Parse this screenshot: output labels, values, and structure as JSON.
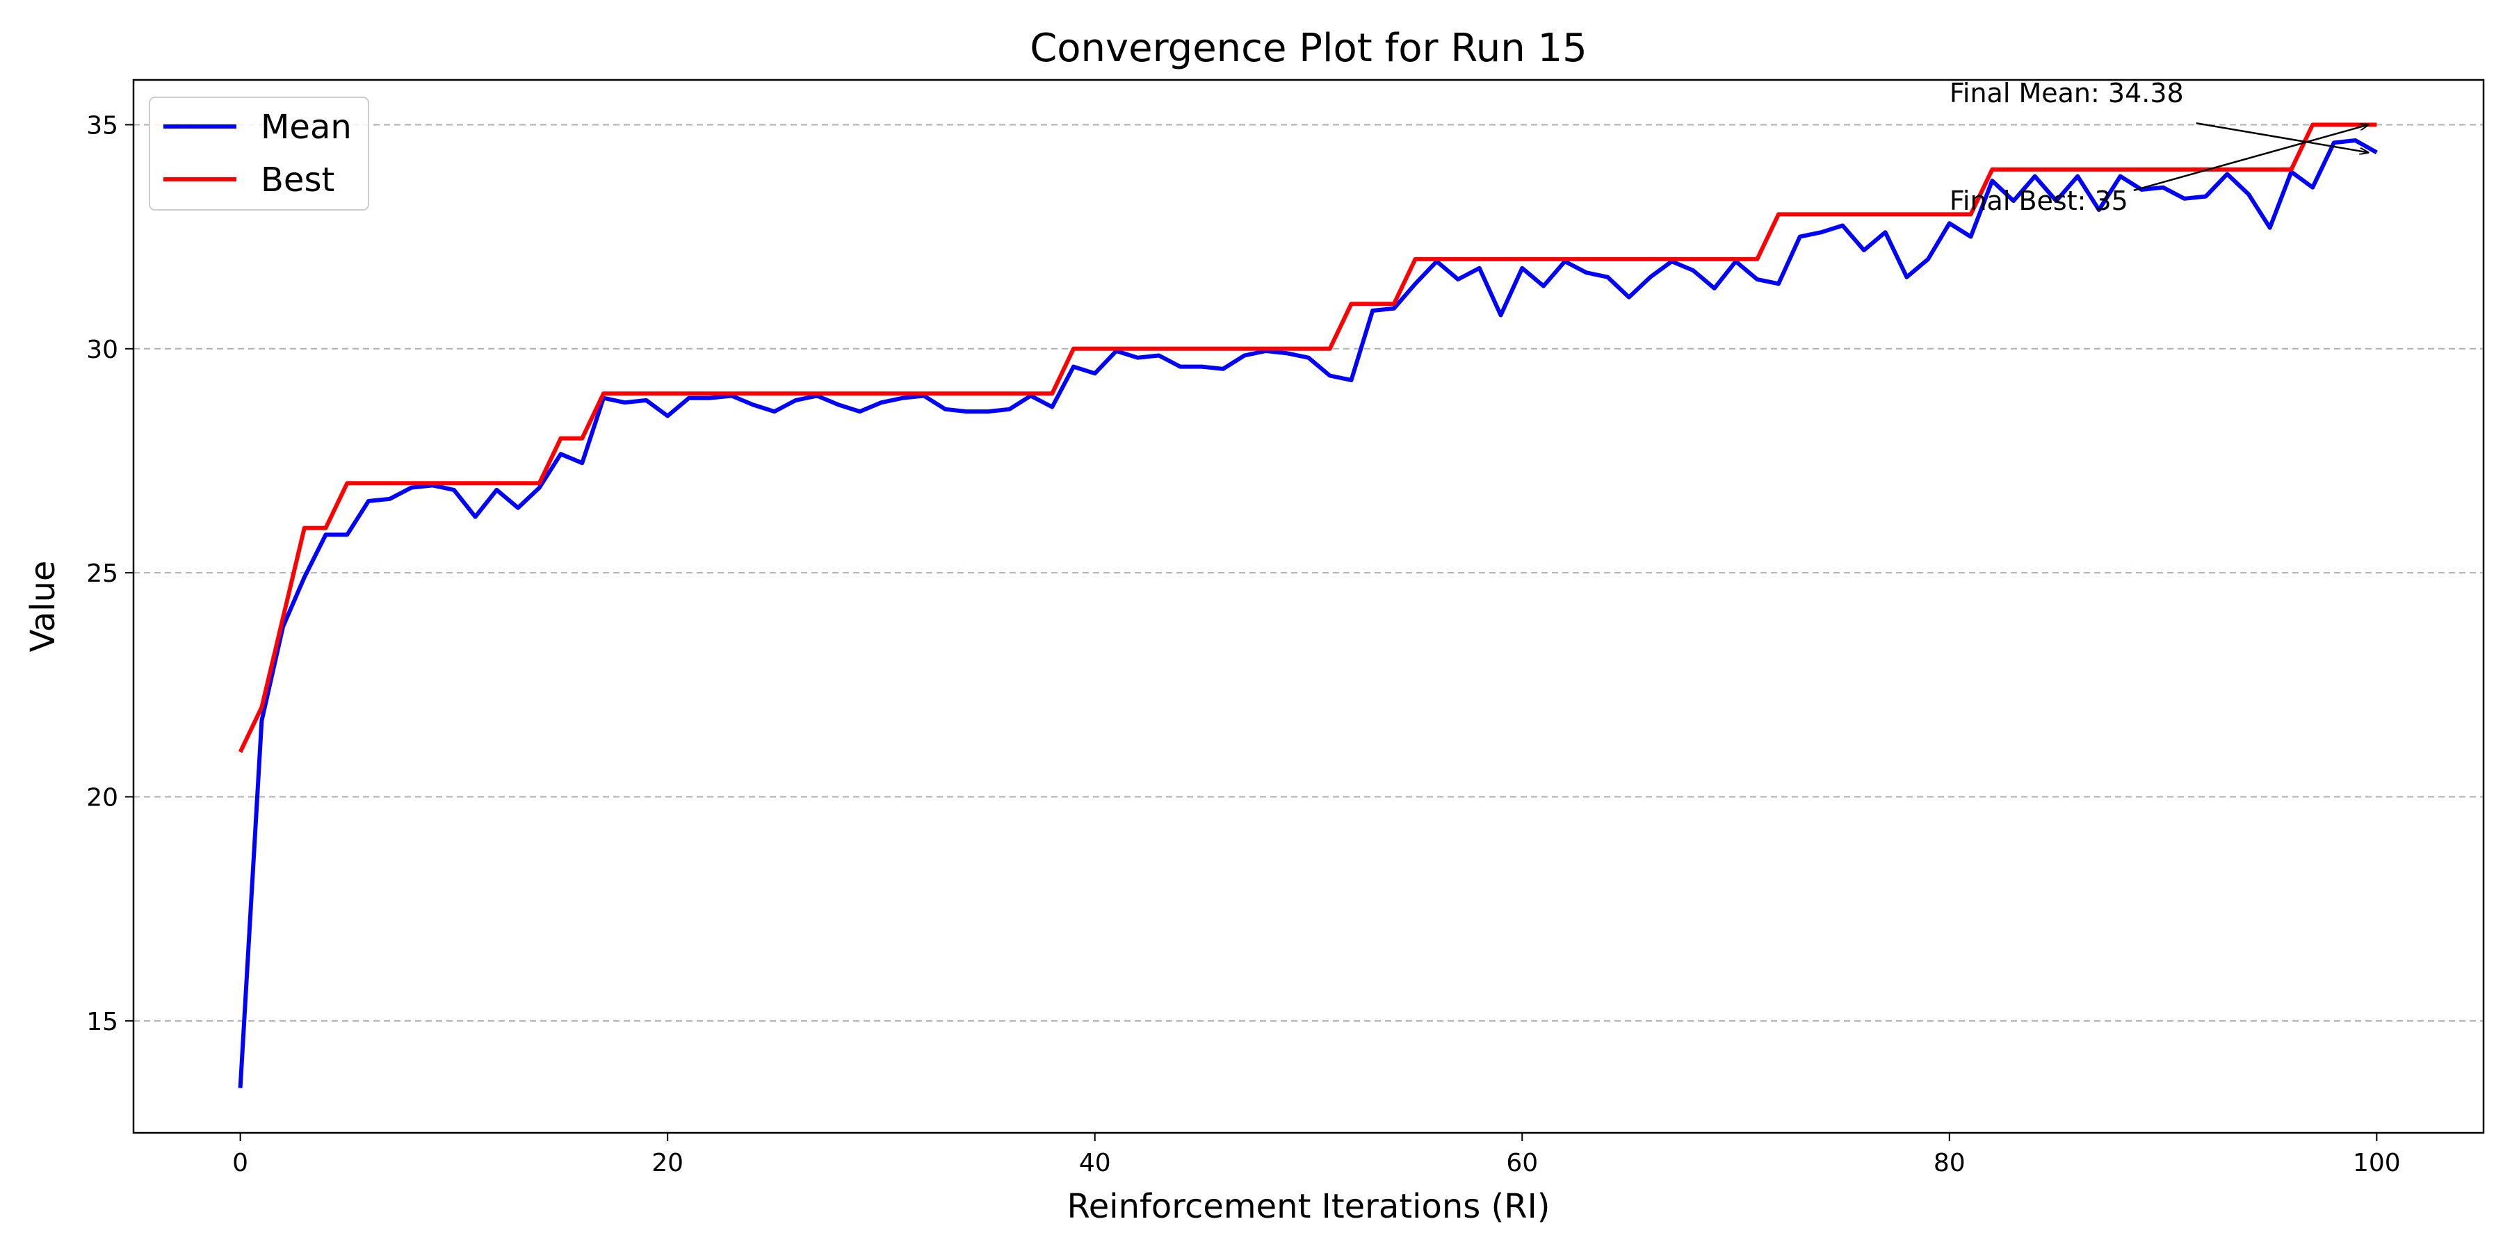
{
  "chart_data": {
    "type": "line",
    "title": "Convergence Plot for Run 15",
    "xlabel": "Reinforcement Iterations (RI)",
    "ylabel": "Value",
    "xlim": [
      -5,
      105
    ],
    "ylim": [
      12.5,
      36
    ],
    "xticks": [
      0,
      20,
      40,
      60,
      80,
      100
    ],
    "yticks": [
      15,
      20,
      25,
      30,
      35
    ],
    "grid": "y-dashed",
    "legend_position": "upper-left",
    "x": [
      0,
      1,
      2,
      3,
      4,
      5,
      6,
      7,
      8,
      9,
      10,
      11,
      12,
      13,
      14,
      15,
      16,
      17,
      18,
      19,
      20,
      21,
      22,
      23,
      24,
      25,
      26,
      27,
      28,
      29,
      30,
      31,
      32,
      33,
      34,
      35,
      36,
      37,
      38,
      39,
      40,
      41,
      42,
      43,
      44,
      45,
      46,
      47,
      48,
      49,
      50,
      51,
      52,
      53,
      54,
      55,
      56,
      57,
      58,
      59,
      60,
      61,
      62,
      63,
      64,
      65,
      66,
      67,
      68,
      69,
      70,
      71,
      72,
      73,
      74,
      75,
      76,
      77,
      78,
      79,
      80,
      81,
      82,
      83,
      84,
      85,
      86,
      87,
      88,
      89,
      90,
      91,
      92,
      93,
      94,
      95,
      96,
      97,
      98,
      99,
      100
    ],
    "series": [
      {
        "name": "Mean",
        "color": "#0000ff",
        "values": [
          13.5,
          21.7,
          23.8,
          24.9,
          25.85,
          25.85,
          26.6,
          26.65,
          26.9,
          26.95,
          26.85,
          26.25,
          26.85,
          26.45,
          26.9,
          27.65,
          27.45,
          28.9,
          28.8,
          28.85,
          28.5,
          28.9,
          28.9,
          28.95,
          28.75,
          28.6,
          28.85,
          28.95,
          28.75,
          28.6,
          28.8,
          28.9,
          28.95,
          28.65,
          28.6,
          28.6,
          28.65,
          28.95,
          28.7,
          29.6,
          29.45,
          29.95,
          29.8,
          29.85,
          29.6,
          29.6,
          29.55,
          29.85,
          29.95,
          29.9,
          29.8,
          29.4,
          29.3,
          30.85,
          30.9,
          31.45,
          31.95,
          31.55,
          31.8,
          30.75,
          31.8,
          31.4,
          31.95,
          31.7,
          31.6,
          31.15,
          31.6,
          31.95,
          31.75,
          31.35,
          31.95,
          31.55,
          31.45,
          32.5,
          32.6,
          32.75,
          32.2,
          32.6,
          31.6,
          32.0,
          32.8,
          32.5,
          33.75,
          33.3,
          33.85,
          33.3,
          33.85,
          33.1,
          33.85,
          33.55,
          33.6,
          33.35,
          33.4,
          33.9,
          33.45,
          32.7,
          33.95,
          33.6,
          34.6,
          34.65,
          34.38
        ]
      },
      {
        "name": "Best",
        "color": "#ff0000",
        "values": [
          21,
          22,
          24,
          26,
          26,
          27,
          27,
          27,
          27,
          27,
          27,
          27,
          27,
          27,
          27,
          28,
          28,
          29,
          29,
          29,
          29,
          29,
          29,
          29,
          29,
          29,
          29,
          29,
          29,
          29,
          29,
          29,
          29,
          29,
          29,
          29,
          29,
          29,
          29,
          30,
          30,
          30,
          30,
          30,
          30,
          30,
          30,
          30,
          30,
          30,
          30,
          30,
          31,
          31,
          31,
          32,
          32,
          32,
          32,
          32,
          32,
          32,
          32,
          32,
          32,
          32,
          32,
          32,
          32,
          32,
          32,
          32,
          33,
          33,
          33,
          33,
          33,
          33,
          33,
          33,
          33,
          33,
          34,
          34,
          34,
          34,
          34,
          34,
          34,
          34,
          34,
          34,
          34,
          34,
          34,
          34,
          34,
          35,
          35,
          35,
          35
        ]
      }
    ],
    "annotations": [
      {
        "text": "Final Mean: 34.38",
        "target_x": 100,
        "target_y": 34.38,
        "text_x": 80,
        "text_y": 35.5
      },
      {
        "text": "Final Best: 35",
        "target_x": 100,
        "target_y": 35,
        "text_x": 80,
        "text_y": 33.1
      }
    ]
  }
}
